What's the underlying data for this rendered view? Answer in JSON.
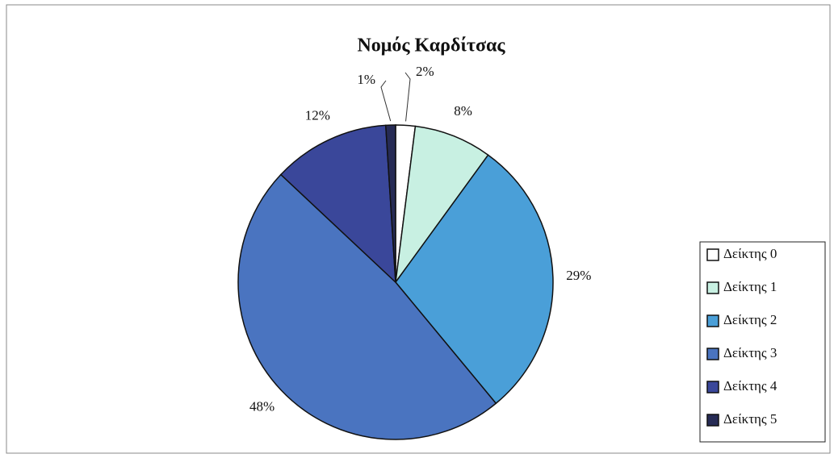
{
  "chart_data": {
    "type": "pie",
    "title": "Νομός Καρδίτσας",
    "categories": [
      "Δείκτης 0",
      "Δείκτης 1",
      "Δείκτης 2",
      "Δείκτης 3",
      "Δείκτης 4",
      "Δείκτης 5"
    ],
    "values": [
      2,
      8,
      29,
      48,
      12,
      1
    ],
    "value_labels": [
      "2%",
      "8%",
      "29%",
      "48%",
      "12%",
      "1%"
    ],
    "colors": [
      "#ffffff",
      "#c8f0e2",
      "#4a9fd8",
      "#4a74c0",
      "#3a479a",
      "#262b55"
    ],
    "legend": "right"
  }
}
